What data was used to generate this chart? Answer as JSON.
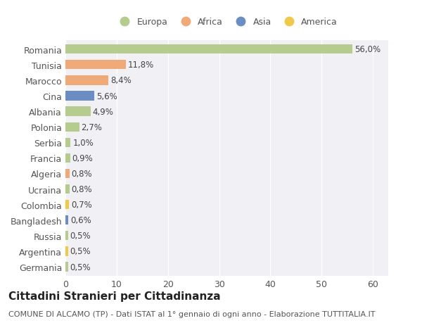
{
  "categories": [
    "Romania",
    "Tunisia",
    "Marocco",
    "Cina",
    "Albania",
    "Polonia",
    "Serbia",
    "Francia",
    "Algeria",
    "Ucraina",
    "Colombia",
    "Bangladesh",
    "Russia",
    "Argentina",
    "Germania"
  ],
  "values": [
    56.0,
    11.8,
    8.4,
    5.6,
    4.9,
    2.7,
    1.0,
    0.9,
    0.8,
    0.8,
    0.7,
    0.6,
    0.5,
    0.5,
    0.5
  ],
  "labels": [
    "56,0%",
    "11,8%",
    "8,4%",
    "5,6%",
    "4,9%",
    "2,7%",
    "1,0%",
    "0,9%",
    "0,8%",
    "0,8%",
    "0,7%",
    "0,6%",
    "0,5%",
    "0,5%",
    "0,5%"
  ],
  "continents": [
    "Europa",
    "Africa",
    "Africa",
    "Asia",
    "Europa",
    "Europa",
    "Europa",
    "Europa",
    "Africa",
    "Europa",
    "America",
    "Asia",
    "Europa",
    "America",
    "Europa"
  ],
  "continent_colors": {
    "Europa": "#b5cc8e",
    "Africa": "#f0aa78",
    "Asia": "#6b8dc4",
    "America": "#f0c84a"
  },
  "legend_order": [
    "Europa",
    "Africa",
    "Asia",
    "America"
  ],
  "bg_color": "#ffffff",
  "plot_bg_color": "#f0f0f5",
  "grid_color": "#ffffff",
  "title": "Cittadini Stranieri per Cittadinanza",
  "subtitle": "COMUNE DI ALCAMO (TP) - Dati ISTAT al 1° gennaio di ogni anno - Elaborazione TUTTITALIA.IT",
  "xlim": [
    0,
    63
  ],
  "xticks": [
    0,
    10,
    20,
    30,
    40,
    50,
    60
  ],
  "bar_height": 0.6,
  "label_fontsize": 8.5,
  "axis_fontsize": 9,
  "title_fontsize": 11,
  "subtitle_fontsize": 8
}
